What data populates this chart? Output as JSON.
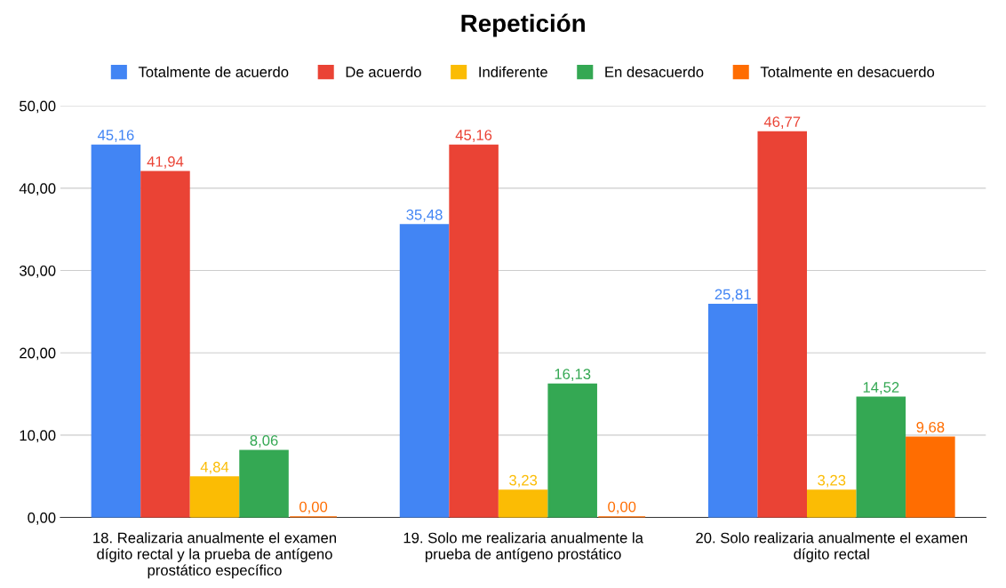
{
  "chart_data": {
    "type": "bar",
    "title": "Repetición",
    "categories": [
      "18. Realizaria anualmente el examen dígito rectal y la prueba de antígeno prostático específico",
      "19. Solo me realizaria anualmente la prueba de antígeno prostático",
      "20. Solo realizaria anualmente el examen dígito rectal"
    ],
    "series": [
      {
        "name": "Totalmente de acuerdo",
        "color": "#4285f4",
        "values": [
          45.16,
          35.48,
          25.81
        ],
        "value_labels": [
          "45,16",
          "35,48",
          "25,81"
        ]
      },
      {
        "name": "De acuerdo",
        "color": "#ea4335",
        "values": [
          41.94,
          45.16,
          46.77
        ],
        "value_labels": [
          "41,94",
          "45,16",
          "46,77"
        ]
      },
      {
        "name": "Indiferente",
        "color": "#fbbc04",
        "values": [
          4.84,
          3.23,
          3.23
        ],
        "value_labels": [
          "4,84",
          "3,23",
          "3,23"
        ]
      },
      {
        "name": "En desacuerdo",
        "color": "#34a853",
        "values": [
          8.06,
          16.13,
          14.52
        ],
        "value_labels": [
          "8,06",
          "16,13",
          "14,52"
        ]
      },
      {
        "name": "Totalmente en desacuerdo",
        "color": "#ff6d01",
        "values": [
          0.0,
          0.0,
          9.68
        ],
        "value_labels": [
          "0,00",
          "0,00",
          "9,68"
        ]
      }
    ],
    "ylim": [
      0,
      50
    ],
    "yticks": [
      {
        "value": 0,
        "label": "0,00"
      },
      {
        "value": 10,
        "label": "10,00"
      },
      {
        "value": 20,
        "label": "20,00"
      },
      {
        "value": 30,
        "label": "30,00"
      },
      {
        "value": 40,
        "label": "40,00"
      },
      {
        "value": 50,
        "label": "50,00"
      }
    ],
    "grid": "y",
    "legend": "top"
  }
}
